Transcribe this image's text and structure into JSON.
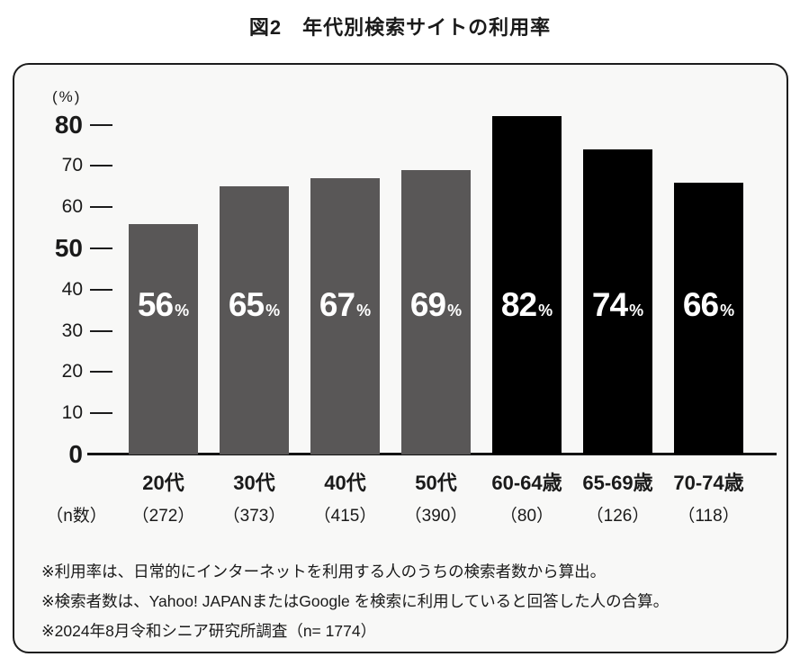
{
  "title": "図2　年代別検索サイトの利用率",
  "chart_data": {
    "type": "bar",
    "title": "年代別検索サイトの利用率",
    "ylabel": "(%)",
    "ylim": [
      0,
      80
    ],
    "yticks": [
      0,
      10,
      20,
      30,
      40,
      50,
      60,
      70,
      80
    ],
    "yticks_emphasized": [
      0,
      50,
      80
    ],
    "grid": false,
    "legend": false,
    "categories": [
      "20代",
      "30代",
      "40代",
      "50代",
      "60-64歳",
      "65-69歳",
      "70-74歳"
    ],
    "values": [
      56,
      65,
      67,
      69,
      82,
      74,
      66
    ],
    "value_suffix": "%",
    "value_label_color": "#ffffff",
    "bar_colors": [
      "#595757",
      "#595757",
      "#595757",
      "#595757",
      "#000000",
      "#000000",
      "#000000"
    ],
    "n_label": "（n数）",
    "n_values": [
      "（272）",
      "（373）",
      "（415）",
      "（390）",
      "（80）",
      "（126）",
      "（118）"
    ]
  },
  "footnotes": [
    "※利用率は、日常的にインターネットを利用する人のうちの検索者数から算出。",
    "※検索者数は、Yahoo! JAPANまたはGoogle を検索に利用していると回答した人の合算。",
    "※2024年8月令和シニア研究所調査（n= 1774）"
  ]
}
